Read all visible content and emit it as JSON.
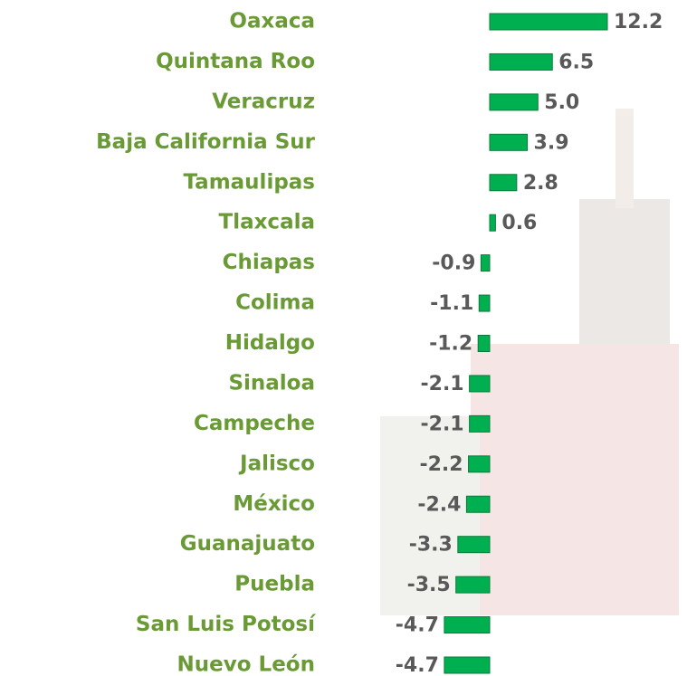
{
  "chart_data": {
    "type": "bar",
    "orientation": "horizontal",
    "color": "#00b050",
    "categories": [
      "Oaxaca",
      "Quintana Roo",
      "Veracruz",
      "Baja California Sur",
      "Tamaulipas",
      "Tlaxcala",
      "Chiapas",
      "Colima",
      "Hidalgo",
      "Sinaloa",
      "Campeche",
      "Jalisco",
      "México",
      "Guanajuato",
      "Puebla",
      "San Luis Potosí",
      "Nuevo León"
    ],
    "values": [
      12.2,
      6.5,
      5.0,
      3.9,
      2.8,
      0.6,
      -0.9,
      -1.1,
      -1.2,
      -2.1,
      -2.1,
      -2.2,
      -2.4,
      -3.3,
      -3.5,
      -4.7,
      -4.7
    ],
    "value_labels": [
      "12.2",
      "6.5",
      "5.0",
      "3.9",
      "2.8",
      "0.6",
      "-0.9",
      "-1.1",
      "-1.2",
      "-2.1",
      "-2.1",
      "-2.2",
      "-2.4",
      "-3.3",
      "-3.5",
      "-4.7",
      "-4.7"
    ]
  }
}
